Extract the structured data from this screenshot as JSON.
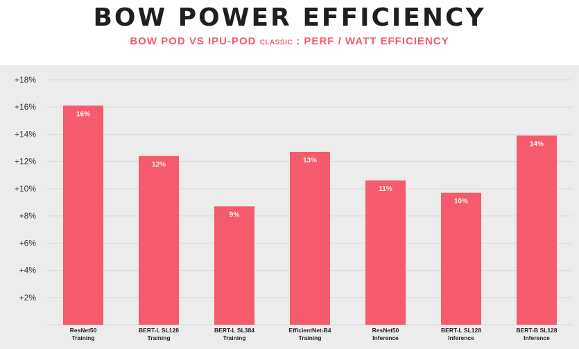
{
  "header": {
    "title": "BOW POWER EFFICIENCY",
    "subtitle_part1": "BOW POD VS IPU-POD",
    "subtitle_part2": "CLASSIC",
    "subtitle_part3": ": PERF / WATT EFFICIENCY"
  },
  "colors": {
    "bar": "#f55b6c",
    "subtitle": "#f05a6a",
    "title": "#1f1f1f",
    "plot_background": "#ececec",
    "gridline": "#d8d8d8"
  },
  "chart_data": {
    "type": "bar",
    "title": "BOW POWER EFFICIENCY",
    "subtitle": "BOW POD VS IPU-POD CLASSIC : PERF / WATT EFFICIENCY",
    "categories": [
      [
        "ResNet50",
        "Training"
      ],
      [
        "BERT-L SL128",
        "Training"
      ],
      [
        "BERT-L SL384",
        "Training"
      ],
      [
        "EfficientNet-B4",
        "Training"
      ],
      [
        "ResNet50",
        "Inference"
      ],
      [
        "BERT-L SL128",
        "Inference"
      ],
      [
        "BERT-B SL128",
        "Inference"
      ]
    ],
    "values": [
      16.1,
      12.4,
      8.7,
      12.7,
      10.6,
      9.7,
      13.9
    ],
    "data_labels": [
      "16%",
      "12%",
      "9%",
      "13%",
      "11%",
      "10%",
      "14%"
    ],
    "y_ticks": [
      2,
      4,
      6,
      8,
      10,
      12,
      14,
      16,
      18
    ],
    "y_tick_labels": [
      "+2%",
      "+4%",
      "+6%",
      "+8%",
      "+10%",
      "+12%",
      "+14%",
      "+16%",
      "+18%"
    ],
    "ylim": [
      0,
      18
    ],
    "xlabel": "",
    "ylabel": "",
    "grid": true,
    "legend": "none"
  }
}
